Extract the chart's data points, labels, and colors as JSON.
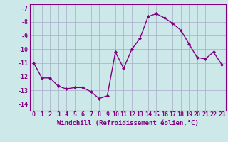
{
  "x": [
    0,
    1,
    2,
    3,
    4,
    5,
    6,
    7,
    8,
    9,
    10,
    11,
    12,
    13,
    14,
    15,
    16,
    17,
    18,
    19,
    20,
    21,
    22,
    23
  ],
  "y": [
    -11,
    -12.1,
    -12.1,
    -12.7,
    -12.9,
    -12.8,
    -12.8,
    -13.1,
    -13.6,
    -13.4,
    -10.2,
    -11.4,
    -10.0,
    -9.2,
    -7.6,
    -7.4,
    -7.7,
    -8.1,
    -8.6,
    -9.6,
    -10.6,
    -10.7,
    -10.2,
    -11.1
  ],
  "line_color": "#800080",
  "marker": "D",
  "markersize": 2.0,
  "linewidth": 1.0,
  "bg_color": "#cce8e8",
  "grid_color": "#aaaacc",
  "xlabel": "Windchill (Refroidissement éolien,°C)",
  "xlabel_fontsize": 6.5,
  "tick_fontsize": 6.0,
  "xlim": [
    -0.5,
    23.5
  ],
  "ylim": [
    -14.5,
    -6.7
  ],
  "yticks": [
    -7,
    -8,
    -9,
    -10,
    -11,
    -12,
    -13,
    -14
  ],
  "xticks": [
    0,
    1,
    2,
    3,
    4,
    5,
    6,
    7,
    8,
    9,
    10,
    11,
    12,
    13,
    14,
    15,
    16,
    17,
    18,
    19,
    20,
    21,
    22,
    23
  ]
}
